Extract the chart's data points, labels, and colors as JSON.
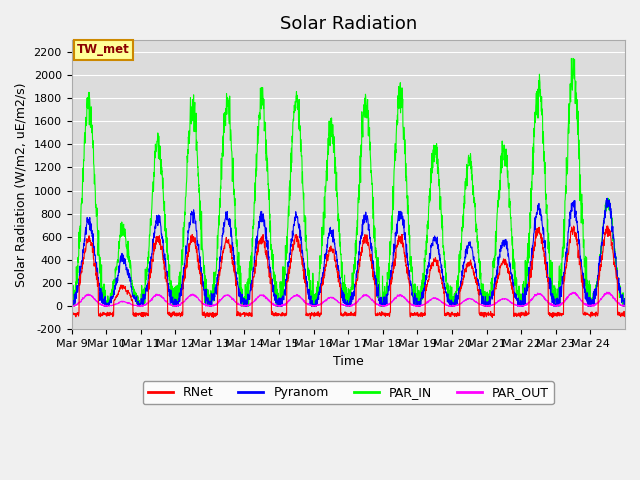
{
  "title": "Solar Radiation",
  "ylabel": "Solar Radiation (W/m2, uE/m2/s)",
  "xlabel": "Time",
  "ylim": [
    -200,
    2300
  ],
  "yticks": [
    -200,
    0,
    200,
    400,
    600,
    800,
    1000,
    1200,
    1400,
    1600,
    1800,
    2000,
    2200
  ],
  "x_tick_labels": [
    "Mar 9",
    "Mar 10",
    "Mar 11",
    "Mar 12",
    "Mar 13",
    "Mar 14",
    "Mar 15",
    "Mar 16",
    "Mar 17",
    "Mar 18",
    "Mar 19",
    "Mar 20",
    "Mar 21",
    "Mar 22",
    "Mar 23",
    "Mar 24"
  ],
  "station_label": "TW_met",
  "legend_entries": [
    "RNet",
    "Pyranom",
    "PAR_IN",
    "PAR_OUT"
  ],
  "line_colors": [
    "#ff0000",
    "#0000ff",
    "#00ff00",
    "#ff00ff"
  ],
  "background_color": "#dcdcdc",
  "fig_bg_color": "#f0f0f0",
  "grid_color": "#ffffff",
  "title_fontsize": 13,
  "axis_fontsize": 9,
  "tick_fontsize": 8,
  "days": 16,
  "par_in_peaks": [
    1760,
    1000,
    1430,
    1740,
    1750,
    1800,
    1800,
    1550,
    1780,
    1840,
    1350,
    1260,
    1360,
    1910,
    2040,
    900
  ],
  "pyranom_peaks": [
    730,
    620,
    750,
    800,
    780,
    780,
    780,
    650,
    775,
    800,
    590,
    540,
    560,
    850,
    870,
    890
  ],
  "rnet_peaks": [
    580,
    250,
    580,
    590,
    580,
    590,
    590,
    500,
    590,
    590,
    400,
    380,
    390,
    650,
    660,
    660
  ],
  "par_out_peaks": [
    100,
    60,
    100,
    100,
    95,
    95,
    95,
    75,
    95,
    95,
    70,
    65,
    65,
    110,
    115,
    115
  ]
}
